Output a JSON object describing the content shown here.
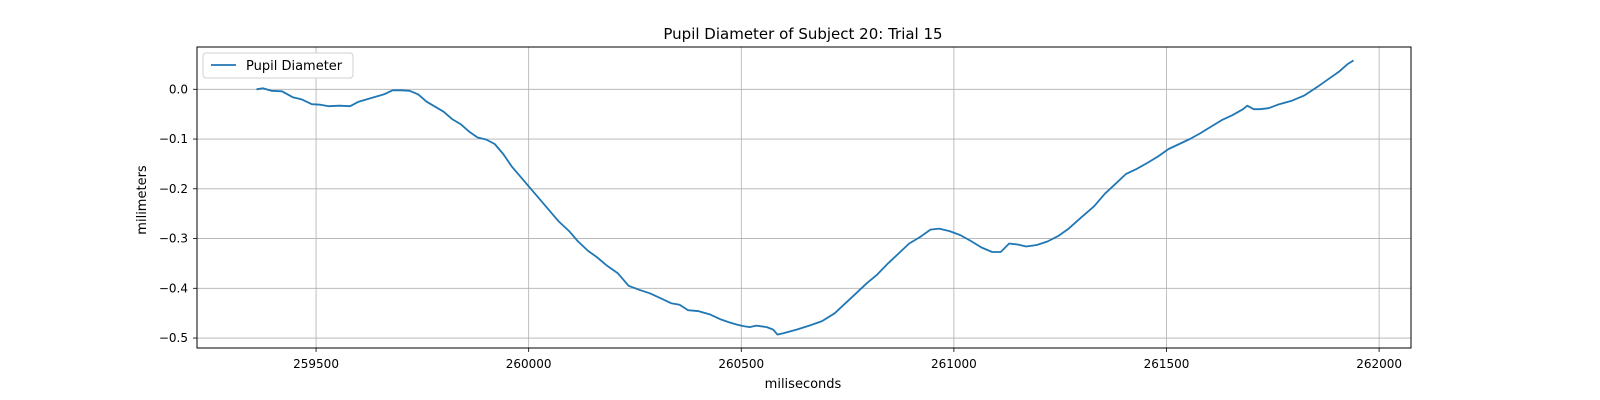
{
  "chart_data": {
    "type": "line",
    "title": "Pupil Diameter of Subject 20: Trial 15",
    "xlabel": "miliseconds",
    "ylabel": "milimeters",
    "xlim": [
      259220,
      262075
    ],
    "ylim": [
      -0.52,
      0.085
    ],
    "xticks": [
      259500,
      260000,
      260500,
      261000,
      261500,
      262000
    ],
    "yticks": [
      0.0,
      -0.1,
      -0.2,
      -0.3,
      -0.4,
      -0.5
    ],
    "grid": true,
    "legend": "upper left",
    "series": [
      {
        "name": "Pupil Diameter",
        "color": "#1f77b4",
        "points": [
          [
            259360,
            0.0
          ],
          [
            259375,
            0.002
          ],
          [
            259395,
            -0.003
          ],
          [
            259420,
            -0.004
          ],
          [
            259445,
            -0.016
          ],
          [
            259465,
            -0.02
          ],
          [
            259490,
            -0.03
          ],
          [
            259510,
            -0.031
          ],
          [
            259530,
            -0.034
          ],
          [
            259555,
            -0.033
          ],
          [
            259580,
            -0.034
          ],
          [
            259600,
            -0.025
          ],
          [
            259620,
            -0.02
          ],
          [
            259640,
            -0.015
          ],
          [
            259660,
            -0.01
          ],
          [
            259680,
            -0.002
          ],
          [
            259700,
            -0.002
          ],
          [
            259720,
            -0.003
          ],
          [
            259740,
            -0.01
          ],
          [
            259760,
            -0.025
          ],
          [
            259780,
            -0.035
          ],
          [
            259800,
            -0.045
          ],
          [
            259820,
            -0.06
          ],
          [
            259840,
            -0.07
          ],
          [
            259860,
            -0.085
          ],
          [
            259880,
            -0.097
          ],
          [
            259900,
            -0.101
          ],
          [
            259920,
            -0.11
          ],
          [
            259940,
            -0.13
          ],
          [
            259960,
            -0.155
          ],
          [
            259985,
            -0.18
          ],
          [
            260005,
            -0.2
          ],
          [
            260025,
            -0.22
          ],
          [
            260045,
            -0.24
          ],
          [
            260070,
            -0.265
          ],
          [
            260095,
            -0.285
          ],
          [
            260115,
            -0.305
          ],
          [
            260140,
            -0.325
          ],
          [
            260160,
            -0.337
          ],
          [
            260185,
            -0.355
          ],
          [
            260210,
            -0.37
          ],
          [
            260235,
            -0.395
          ],
          [
            260260,
            -0.403
          ],
          [
            260285,
            -0.41
          ],
          [
            260310,
            -0.42
          ],
          [
            260335,
            -0.43
          ],
          [
            260355,
            -0.433
          ],
          [
            260375,
            -0.444
          ],
          [
            260400,
            -0.446
          ],
          [
            260425,
            -0.452
          ],
          [
            260450,
            -0.462
          ],
          [
            260470,
            -0.468
          ],
          [
            260490,
            -0.473
          ],
          [
            260505,
            -0.476
          ],
          [
            260520,
            -0.478
          ],
          [
            260535,
            -0.475
          ],
          [
            260560,
            -0.478
          ],
          [
            260575,
            -0.483
          ],
          [
            260585,
            -0.493
          ],
          [
            260600,
            -0.49
          ],
          [
            260630,
            -0.483
          ],
          [
            260660,
            -0.475
          ],
          [
            260690,
            -0.466
          ],
          [
            260720,
            -0.45
          ],
          [
            260745,
            -0.43
          ],
          [
            260770,
            -0.41
          ],
          [
            260795,
            -0.39
          ],
          [
            260820,
            -0.372
          ],
          [
            260845,
            -0.35
          ],
          [
            260870,
            -0.33
          ],
          [
            260895,
            -0.31
          ],
          [
            260920,
            -0.297
          ],
          [
            260945,
            -0.282
          ],
          [
            260965,
            -0.28
          ],
          [
            260990,
            -0.285
          ],
          [
            261015,
            -0.293
          ],
          [
            261040,
            -0.305
          ],
          [
            261065,
            -0.318
          ],
          [
            261090,
            -0.327
          ],
          [
            261110,
            -0.327
          ],
          [
            261130,
            -0.31
          ],
          [
            261150,
            -0.312
          ],
          [
            261170,
            -0.316
          ],
          [
            261195,
            -0.313
          ],
          [
            261220,
            -0.306
          ],
          [
            261245,
            -0.295
          ],
          [
            261270,
            -0.28
          ],
          [
            261300,
            -0.257
          ],
          [
            261330,
            -0.235
          ],
          [
            261355,
            -0.21
          ],
          [
            261380,
            -0.19
          ],
          [
            261405,
            -0.17
          ],
          [
            261430,
            -0.16
          ],
          [
            261455,
            -0.148
          ],
          [
            261480,
            -0.135
          ],
          [
            261505,
            -0.12
          ],
          [
            261530,
            -0.11
          ],
          [
            261555,
            -0.1
          ],
          [
            261580,
            -0.088
          ],
          [
            261605,
            -0.075
          ],
          [
            261630,
            -0.062
          ],
          [
            261655,
            -0.052
          ],
          [
            261680,
            -0.04
          ],
          [
            261690,
            -0.033
          ],
          [
            261705,
            -0.04
          ],
          [
            261720,
            -0.04
          ],
          [
            261740,
            -0.038
          ],
          [
            261765,
            -0.03
          ],
          [
            261795,
            -0.023
          ],
          [
            261825,
            -0.012
          ],
          [
            261855,
            0.005
          ],
          [
            261880,
            0.02
          ],
          [
            261905,
            0.035
          ],
          [
            261925,
            0.05
          ],
          [
            261940,
            0.058
          ]
        ]
      }
    ]
  }
}
